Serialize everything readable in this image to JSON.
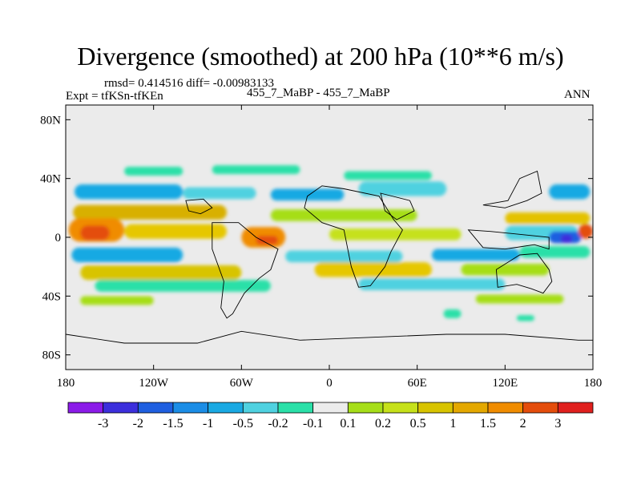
{
  "header": {
    "title": "Divergence (smoothed) at 200 hPa (10**6 m/s)",
    "stats": "rmsd= 0.414516 diff= -0.00983133",
    "experiment": "Expt = tfKSn-tfKEn",
    "case": "455_7_MaBP - 455_7_MaBP",
    "season": "ANN"
  },
  "map": {
    "lon_range": [
      -180,
      180
    ],
    "lat_range": [
      -90,
      90
    ],
    "background_color": "#ebebeb",
    "y_ticks": [
      {
        "value": 80,
        "label": "80N"
      },
      {
        "value": 40,
        "label": "40N"
      },
      {
        "value": 0,
        "label": "0"
      },
      {
        "value": -40,
        "label": "40S"
      },
      {
        "value": -80,
        "label": "80S"
      }
    ],
    "x_ticks": [
      {
        "value": -180,
        "label": "180"
      },
      {
        "value": -120,
        "label": "120W"
      },
      {
        "value": -60,
        "label": "60W"
      },
      {
        "value": 0,
        "label": "0"
      },
      {
        "value": 60,
        "label": "60E"
      },
      {
        "value": 120,
        "label": "120E"
      },
      {
        "value": 180,
        "label": "180"
      }
    ],
    "bands": [
      {
        "lat": 31,
        "lon_start": -174,
        "lon_end": -100,
        "thick": 5,
        "color": "#19a9e3"
      },
      {
        "lat": 30,
        "lon_start": -100,
        "lon_end": -50,
        "thick": 4,
        "color": "#4fd1e0"
      },
      {
        "lat": 29,
        "lon_start": -40,
        "lon_end": 10,
        "thick": 4,
        "color": "#19a9e3"
      },
      {
        "lat": 33,
        "lon_start": 20,
        "lon_end": 80,
        "thick": 5,
        "color": "#4fd1e0"
      },
      {
        "lat": 31,
        "lon_start": 150,
        "lon_end": 178,
        "thick": 5,
        "color": "#19a9e3"
      },
      {
        "lat": 45,
        "lon_start": -140,
        "lon_end": -100,
        "thick": 3,
        "color": "#2ae0a8"
      },
      {
        "lat": 46,
        "lon_start": -80,
        "lon_end": -20,
        "thick": 3,
        "color": "#2ae0a8"
      },
      {
        "lat": 42,
        "lon_start": 10,
        "lon_end": 70,
        "thick": 3,
        "color": "#2ae0a8"
      },
      {
        "lat": 17,
        "lon_start": -175,
        "lon_end": -70,
        "thick": 5,
        "color": "#d8b000"
      },
      {
        "lat": 15,
        "lon_start": -40,
        "lon_end": 60,
        "thick": 4,
        "color": "#a6de19"
      },
      {
        "lat": 13,
        "lon_start": 120,
        "lon_end": 178,
        "thick": 4,
        "color": "#e4c200"
      },
      {
        "lat": 5,
        "lon_start": -178,
        "lon_end": -140,
        "thick": 8,
        "color": "#f08c00"
      },
      {
        "lat": 3,
        "lon_start": -170,
        "lon_end": -150,
        "thick": 5,
        "color": "#e44d0c"
      },
      {
        "lat": 4,
        "lon_start": -140,
        "lon_end": -70,
        "thick": 5,
        "color": "#e6c700"
      },
      {
        "lat": 0,
        "lon_start": -60,
        "lon_end": -30,
        "thick": 7,
        "color": "#f08c00"
      },
      {
        "lat": -2,
        "lon_start": -50,
        "lon_end": -35,
        "thick": 3,
        "color": "#e44d0c"
      },
      {
        "lat": 2,
        "lon_start": 0,
        "lon_end": 90,
        "thick": 4,
        "color": "#c6e11a"
      },
      {
        "lat": 3,
        "lon_start": 120,
        "lon_end": 170,
        "thick": 5,
        "color": "#4fd1e0"
      },
      {
        "lat": 0,
        "lon_start": 150,
        "lon_end": 172,
        "thick": 4,
        "color": "#1f5fe0"
      },
      {
        "lat": -1,
        "lon_start": 158,
        "lon_end": 166,
        "thick": 3,
        "color": "#3c2fdc"
      },
      {
        "lat": 4,
        "lon_start": 170,
        "lon_end": 180,
        "thick": 5,
        "color": "#e44d0c"
      },
      {
        "lat": -12,
        "lon_start": -176,
        "lon_end": -100,
        "thick": 5,
        "color": "#19a9e3"
      },
      {
        "lat": -13,
        "lon_start": -30,
        "lon_end": 50,
        "thick": 4,
        "color": "#4fd1e0"
      },
      {
        "lat": -12,
        "lon_start": 70,
        "lon_end": 130,
        "thick": 4,
        "color": "#19a9e3"
      },
      {
        "lat": -10,
        "lon_start": 130,
        "lon_end": 178,
        "thick": 4,
        "color": "#2ae0a8"
      },
      {
        "lat": -24,
        "lon_start": -170,
        "lon_end": -60,
        "thick": 5,
        "color": "#d8c400"
      },
      {
        "lat": -22,
        "lon_start": -10,
        "lon_end": 70,
        "thick": 5,
        "color": "#e6c700"
      },
      {
        "lat": -22,
        "lon_start": 90,
        "lon_end": 150,
        "thick": 4,
        "color": "#a6de19"
      },
      {
        "lat": -33,
        "lon_start": -160,
        "lon_end": -40,
        "thick": 4,
        "color": "#2ae0a8"
      },
      {
        "lat": -32,
        "lon_start": 20,
        "lon_end": 120,
        "thick": 4,
        "color": "#4fd1e0"
      },
      {
        "lat": -43,
        "lon_start": -170,
        "lon_end": -120,
        "thick": 3,
        "color": "#a6de19"
      },
      {
        "lat": -42,
        "lon_start": 100,
        "lon_end": 160,
        "thick": 3,
        "color": "#a6de19"
      },
      {
        "lat": -52,
        "lon_start": 78,
        "lon_end": 90,
        "thick": 3,
        "color": "#2ae0a8"
      },
      {
        "lat": -55,
        "lon_start": 128,
        "lon_end": 140,
        "thick": 2,
        "color": "#2ae0a8"
      }
    ],
    "outlines": [
      {
        "name": "south-america",
        "points": [
          [
            -80,
            10
          ],
          [
            -62,
            10
          ],
          [
            -50,
            0
          ],
          [
            -35,
            -8
          ],
          [
            -40,
            -22
          ],
          [
            -48,
            -28
          ],
          [
            -58,
            -38
          ],
          [
            -66,
            -52
          ],
          [
            -70,
            -55
          ],
          [
            -74,
            -48
          ],
          [
            -72,
            -30
          ],
          [
            -80,
            -8
          ]
        ]
      },
      {
        "name": "north-america-gulf",
        "points": [
          [
            -98,
            25
          ],
          [
            -86,
            26
          ],
          [
            -80,
            20
          ],
          [
            -88,
            16
          ],
          [
            -96,
            18
          ]
        ]
      },
      {
        "name": "africa",
        "points": [
          [
            -17,
            20
          ],
          [
            -5,
            10
          ],
          [
            10,
            5
          ],
          [
            12,
            -5
          ],
          [
            15,
            -20
          ],
          [
            20,
            -34
          ],
          [
            28,
            -33
          ],
          [
            38,
            -20
          ],
          [
            42,
            -10
          ],
          [
            50,
            5
          ],
          [
            44,
            12
          ],
          [
            34,
            28
          ],
          [
            10,
            33
          ],
          [
            -5,
            35
          ],
          [
            -15,
            28
          ]
        ]
      },
      {
        "name": "arabia",
        "points": [
          [
            35,
            30
          ],
          [
            55,
            25
          ],
          [
            58,
            18
          ],
          [
            46,
            12
          ],
          [
            38,
            18
          ]
        ]
      },
      {
        "name": "maritime-continent",
        "points": [
          [
            95,
            5
          ],
          [
            105,
            -7
          ],
          [
            120,
            -8
          ],
          [
            140,
            -5
          ],
          [
            150,
            -8
          ],
          [
            150,
            0
          ],
          [
            130,
            2
          ],
          [
            110,
            4
          ]
        ]
      },
      {
        "name": "australia",
        "points": [
          [
            114,
            -22
          ],
          [
            130,
            -12
          ],
          [
            142,
            -11
          ],
          [
            150,
            -22
          ],
          [
            152,
            -30
          ],
          [
            146,
            -38
          ],
          [
            138,
            -35
          ],
          [
            128,
            -32
          ],
          [
            115,
            -34
          ]
        ]
      },
      {
        "name": "asia-east",
        "points": [
          [
            105,
            22
          ],
          [
            122,
            25
          ],
          [
            130,
            40
          ],
          [
            142,
            45
          ],
          [
            145,
            30
          ],
          [
            135,
            25
          ],
          [
            120,
            20
          ]
        ]
      },
      {
        "name": "antarctica",
        "points": [
          [
            -180,
            -66
          ],
          [
            -140,
            -72
          ],
          [
            -90,
            -72
          ],
          [
            -60,
            -64
          ],
          [
            -20,
            -70
          ],
          [
            30,
            -68
          ],
          [
            80,
            -66
          ],
          [
            120,
            -66
          ],
          [
            170,
            -70
          ],
          [
            180,
            -70
          ]
        ]
      }
    ]
  },
  "colorbar": {
    "colors": [
      "#8b1be8",
      "#3c2fdc",
      "#1f5fe0",
      "#1b8de6",
      "#19a9e3",
      "#4fd1e0",
      "#2ae0a8",
      "#ececec",
      "#a6de19",
      "#c6e11a",
      "#d8c400",
      "#e4a800",
      "#f08c00",
      "#e44d0c",
      "#e0201e"
    ],
    "labels": [
      "-3",
      "-2",
      "-1.5",
      "-1",
      "-0.5",
      "-0.2",
      "-0.1",
      "0.1",
      "0.2",
      "0.5",
      "1",
      "1.5",
      "2",
      "3"
    ]
  }
}
